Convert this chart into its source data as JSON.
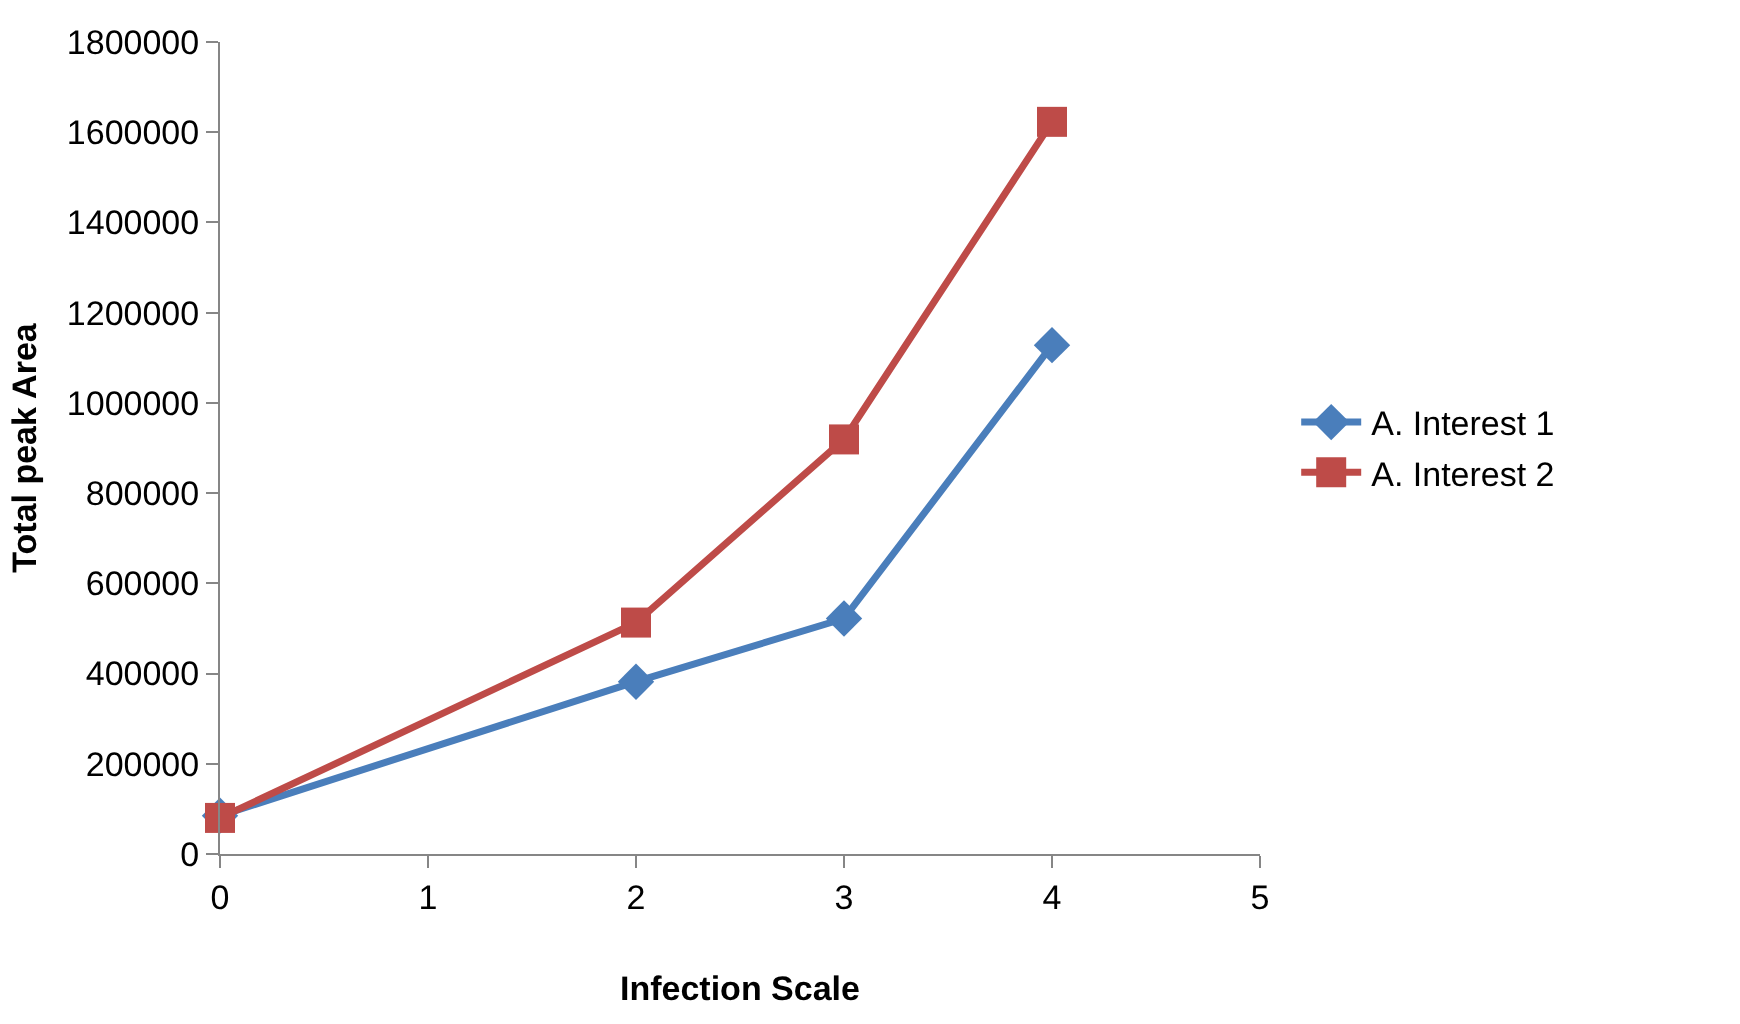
{
  "chart_data": {
    "type": "line",
    "xlabel": "Infection Scale",
    "ylabel": "Total peak Area",
    "x": [
      0,
      2,
      3,
      4
    ],
    "series": [
      {
        "name": "A. Interest 1",
        "color": "#4a7ebb",
        "marker": "diamond",
        "values": [
          85000,
          382000,
          522000,
          1128000
        ]
      },
      {
        "name": "A. Interest 2",
        "color": "#be4b48",
        "marker": "square",
        "values": [
          80000,
          513000,
          919000,
          1623000
        ]
      }
    ],
    "xlim": [
      0,
      5
    ],
    "xticks": [
      0,
      1,
      2,
      3,
      4,
      5
    ],
    "ylim": [
      0,
      1800000
    ],
    "yticks": [
      0,
      200000,
      400000,
      600000,
      800000,
      1000000,
      1200000,
      1400000,
      1600000,
      1800000
    ],
    "legend": "right",
    "line_style": "solid"
  }
}
